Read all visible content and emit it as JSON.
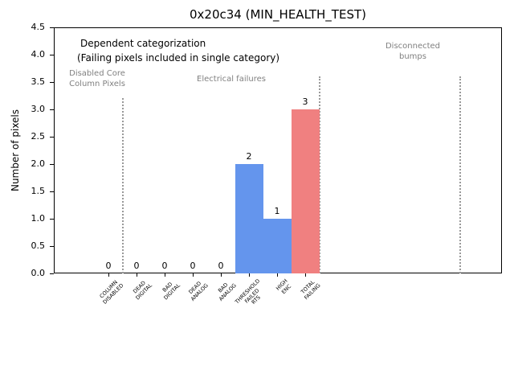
{
  "window": {
    "title": "0x20c34 (MIN_HEALTH_TEST)"
  },
  "chart_data": {
    "type": "bar",
    "title": "0x20c34 (MIN_HEALTH_TEST)",
    "xlabel": "",
    "ylabel": "Number of pixels",
    "ylim": [
      0,
      4.5
    ],
    "ytick_step": 0.5,
    "grid": false,
    "legend": "none",
    "categories": [
      "COLUMN\nDISABLED",
      "DEAD\nDIGITAL",
      "BAD\nDIGITAL",
      "DEAD\nANALOG",
      "BAD\nANALOG",
      "THRESHOLD\nFAILED\nRTS",
      "HIGH\nENC",
      "TOTAL\nFAILING"
    ],
    "category_slugs": [
      "column-disabled",
      "dead-digital",
      "bad-digital",
      "dead-analog",
      "bad-analog",
      "threshold-failed-rts",
      "high-enc",
      "total-failing"
    ],
    "values": [
      0,
      0,
      0,
      0,
      0,
      2,
      1,
      3
    ],
    "value_labels": [
      "0",
      "0",
      "0",
      "0",
      "0",
      "2",
      "1",
      "3"
    ],
    "bar_colors": [
      "#6495ed",
      "#6495ed",
      "#6495ed",
      "#6495ed",
      "#6495ed",
      "#6495ed",
      "#6495ed",
      "#f08080"
    ],
    "annotations": [
      {
        "id": "dependent-categorization",
        "text": "Dependent categorization",
        "color": "#000000"
      },
      {
        "id": "failing-pixels-note",
        "text": "(Failing pixels included in single category)",
        "color": "#000000"
      }
    ],
    "group_labels": [
      {
        "id": "disabled-core-column-pixels",
        "text": "Disabled Core\nColumn Pixels",
        "color": "#808080"
      },
      {
        "id": "electrical-failures",
        "text": "Electrical failures",
        "color": "#808080"
      },
      {
        "id": "disconnected-bumps",
        "text": "Disconnected\nbumps",
        "color": "#808080"
      }
    ],
    "separators": [
      {
        "x": 0.5,
        "ymax": 3.2
      },
      {
        "x": 7.5,
        "ymax": 3.6
      },
      {
        "x": 12.5,
        "ymax": 3.6
      }
    ],
    "colors": {
      "bar_blue": "#6495ed",
      "bar_red": "#f08080",
      "annotation_gray": "#808080",
      "separator_gray": "#999999",
      "axis_black": "#000000",
      "background": "#ffffff"
    }
  }
}
